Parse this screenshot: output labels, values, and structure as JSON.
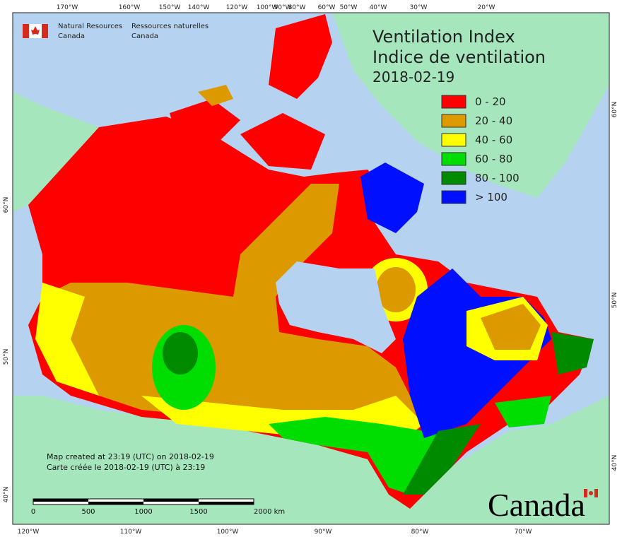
{
  "agency": {
    "english": [
      "Natural Resources",
      "Canada"
    ],
    "french": [
      "Ressources naturelles",
      "Canada"
    ]
  },
  "title": [
    "Ventilation Index",
    "Indice de ventilation"
  ],
  "date": "2018-02-19",
  "legend": [
    {
      "label": "0 - 20",
      "color": "#ff0000"
    },
    {
      "label": "20 - 40",
      "color": "#dd9a00"
    },
    {
      "label": "40 - 60",
      "color": "#ffff00"
    },
    {
      "label": "60 - 80",
      "color": "#00dd00"
    },
    {
      "label": "80 - 100",
      "color": "#008a00"
    },
    {
      "label": "> 100",
      "color": "#0010ff"
    }
  ],
  "graticule": {
    "top": [
      "170°W",
      "160°W",
      "150°W",
      "140°W",
      "120°W",
      "100°W",
      "90°W",
      "80°W",
      "60°W",
      "50°W",
      "40°W",
      "30°W",
      "20°W"
    ],
    "bottom": [
      "120°W",
      "110°W",
      "100°W",
      "90°W",
      "80°W",
      "70°W"
    ],
    "left": [
      "60°N",
      "50°N",
      "40°N"
    ],
    "right": [
      "60°N",
      "50°N",
      "40°N"
    ]
  },
  "notes": [
    "Map created at 23:19 (UTC) on 2018-02-19",
    "Carte créée le 2018-02-19 (UTC) à 23:19"
  ],
  "scale_bar": [
    "0",
    "500",
    "1000",
    "1500",
    "2000 km"
  ],
  "wordmark": "Canada"
}
